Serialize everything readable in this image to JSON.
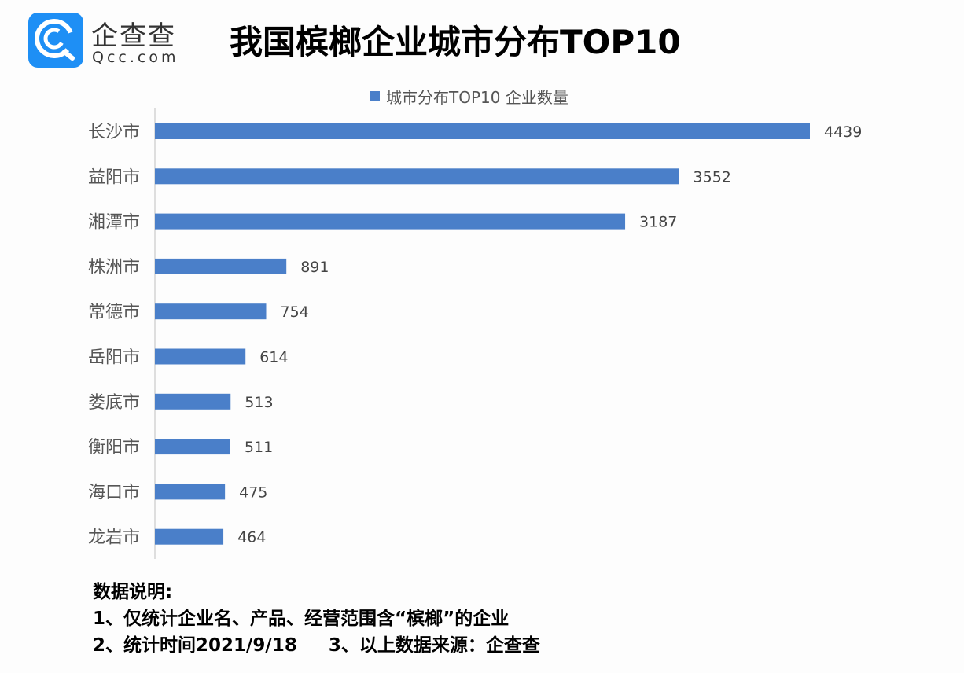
{
  "logo": {
    "cn": "企查查",
    "en": "Qcc.com"
  },
  "title": "我国槟榔企业城市分布TOP10",
  "chart_data": {
    "type": "bar",
    "orientation": "horizontal",
    "categories": [
      "长沙市",
      "益阳市",
      "湘潭市",
      "株洲市",
      "常德市",
      "岳阳市",
      "娄底市",
      "衡阳市",
      "海口市",
      "龙岩市"
    ],
    "series": [
      {
        "name": "城市分布TOP10 企业数量",
        "values": [
          4439,
          3552,
          3187,
          891,
          754,
          614,
          513,
          511,
          475,
          464
        ],
        "color": "#4a7fc9"
      }
    ],
    "legend": "top",
    "grid": false,
    "data_labels": true
  },
  "notes": {
    "heading": "数据说明:",
    "line1": "1、仅统计企业名、产品、经营范围含“槟榔”的企业",
    "line2": "2、统计时间2021/9/18     3、以上数据来源：企查查"
  }
}
